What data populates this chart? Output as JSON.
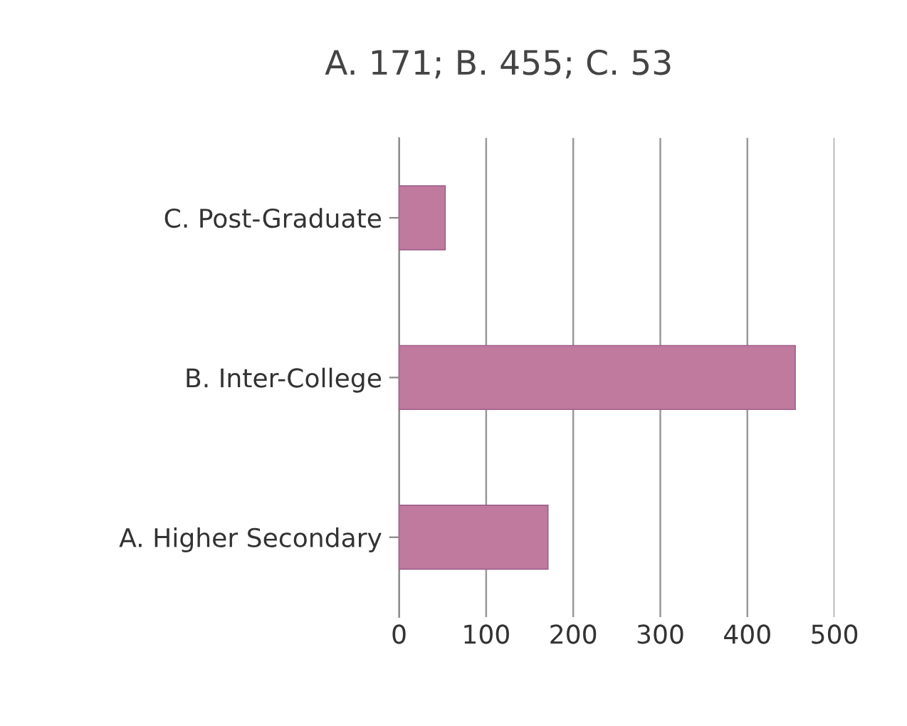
{
  "chart_data": {
    "type": "bar",
    "orientation": "horizontal",
    "title": "A. 171; B. 455; C. 53",
    "categories": [
      "C. Post-Graduate",
      "B. Inter-College",
      "A. Higher Secondary"
    ],
    "values": [
      53,
      455,
      171
    ],
    "color": "#c07a9e",
    "xlim": [
      0,
      500
    ],
    "xticks": [
      0,
      100,
      200,
      300,
      400,
      500
    ],
    "grid": "x"
  }
}
